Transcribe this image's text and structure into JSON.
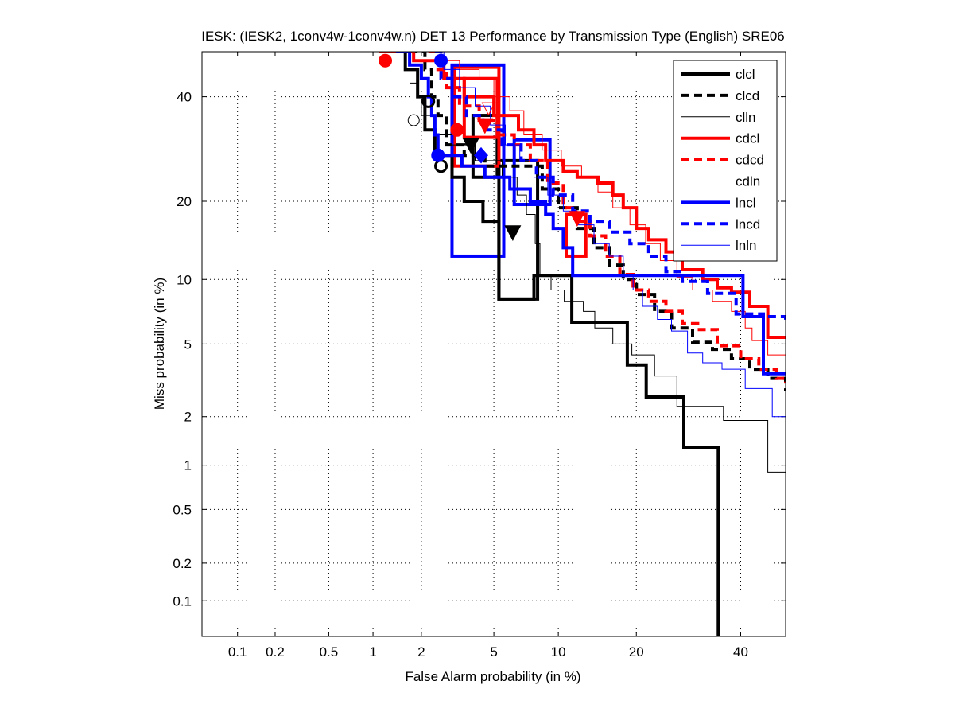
{
  "chart_data": {
    "type": "line",
    "title": "IESK: (IESK2, 1conv4w-1conv4w.n) DET 13 Performance by Transmission Type (English) SRE06",
    "xlabel": "False Alarm probability (in %)",
    "ylabel": "Miss probability (in %)",
    "xscale": "normal-deviate",
    "yscale": "normal-deviate",
    "xlim": [
      0.05,
      50
    ],
    "ylim": [
      0.05,
      50
    ],
    "grid": true,
    "xticks": [
      0.1,
      0.2,
      0.5,
      1,
      2,
      5,
      10,
      20,
      40
    ],
    "xtick_labels": [
      "0.1",
      "0.2",
      "0.5",
      "1",
      "2",
      "5",
      "10",
      "20",
      "40"
    ],
    "yticks": [
      0.1,
      0.2,
      0.5,
      1,
      2,
      5,
      10,
      20,
      40
    ],
    "ytick_labels": [
      "0.1",
      "0.2",
      "0.5",
      "1",
      "2",
      "5",
      "10",
      "20",
      "40"
    ],
    "legend_position": "top-right",
    "series": [
      {
        "name": "clcl",
        "color": "#000000",
        "style": "solid",
        "weight": "thick",
        "points": [
          [
            1.6,
            50
          ],
          [
            1.6,
            46
          ],
          [
            1.9,
            46
          ],
          [
            1.9,
            40
          ],
          [
            2.1,
            40
          ],
          [
            2.1,
            33
          ],
          [
            2.4,
            33
          ],
          [
            2.4,
            28
          ],
          [
            3.0,
            28
          ],
          [
            3.0,
            24
          ],
          [
            3.5,
            24
          ],
          [
            3.5,
            20
          ],
          [
            4.4,
            20
          ],
          [
            4.4,
            17
          ],
          [
            5.3,
            17
          ],
          [
            5.3,
            8.2
          ],
          [
            7.8,
            8.2
          ],
          [
            7.8,
            10.4
          ],
          [
            11.4,
            10.4
          ],
          [
            11.4,
            6.4
          ],
          [
            18.6,
            6.4
          ],
          [
            18.6,
            3.9
          ],
          [
            21.6,
            3.9
          ],
          [
            21.6,
            2.6
          ],
          [
            28.3,
            2.6
          ],
          [
            28.3,
            1.3
          ],
          [
            35.2,
            1.3
          ],
          [
            35.2,
            0.05
          ]
        ]
      },
      {
        "name": "clcd",
        "color": "#000000",
        "style": "dashed",
        "weight": "thick",
        "points": [
          [
            1.7,
            50
          ],
          [
            2.1,
            46
          ],
          [
            2.3,
            40
          ],
          [
            2.5,
            36
          ],
          [
            2.8,
            30
          ],
          [
            3.5,
            28
          ],
          [
            4.5,
            26
          ],
          [
            6.0,
            26
          ],
          [
            7.6,
            26
          ],
          [
            8.5,
            22
          ],
          [
            10,
            19
          ],
          [
            12,
            16
          ],
          [
            14,
            13.5
          ],
          [
            16,
            11.5
          ],
          [
            18,
            10
          ],
          [
            20,
            8.6
          ],
          [
            23,
            7.2
          ],
          [
            26,
            6.0
          ],
          [
            30,
            5.1
          ],
          [
            34,
            4.7
          ],
          [
            38,
            4.2
          ],
          [
            42,
            3.7
          ],
          [
            46,
            3.3
          ],
          [
            50,
            2.8
          ]
        ]
      },
      {
        "name": "clln",
        "color": "#000000",
        "style": "solid",
        "weight": "thin",
        "points": [
          [
            1.7,
            43
          ],
          [
            1.9,
            40
          ],
          [
            2.0,
            36
          ],
          [
            2.4,
            32
          ],
          [
            3.0,
            30
          ],
          [
            4.0,
            27
          ],
          [
            5.5,
            24
          ],
          [
            6.5,
            21
          ],
          [
            7.2,
            18
          ],
          [
            7.9,
            14
          ],
          [
            8.3,
            10.5
          ],
          [
            9.3,
            9.0
          ],
          [
            10.6,
            8.0
          ],
          [
            12.7,
            7.2
          ],
          [
            14.1,
            6.0
          ],
          [
            16.5,
            5.0
          ],
          [
            19.3,
            4.4
          ],
          [
            23.0,
            3.4
          ],
          [
            27.0,
            2.9
          ],
          [
            27.0,
            2.3
          ],
          [
            36.3,
            2.3
          ],
          [
            36.3,
            1.9
          ],
          [
            46.0,
            1.9
          ],
          [
            46.0,
            0.9
          ],
          [
            50,
            0.9
          ]
        ]
      },
      {
        "name": "cdcl",
        "color": "#ff0000",
        "style": "solid",
        "weight": "thick",
        "points": [
          [
            1.1,
            50
          ],
          [
            1.8,
            48
          ],
          [
            2.7,
            44
          ],
          [
            3.5,
            40
          ],
          [
            5.0,
            36
          ],
          [
            6.6,
            33
          ],
          [
            7.8,
            30
          ],
          [
            8.8,
            27
          ],
          [
            10.5,
            25
          ],
          [
            12,
            24
          ],
          [
            14.5,
            23
          ],
          [
            16.5,
            21
          ],
          [
            18,
            19
          ],
          [
            20,
            16
          ],
          [
            22,
            14.5
          ],
          [
            25,
            13
          ],
          [
            28,
            11
          ],
          [
            32,
            10
          ],
          [
            35,
            9.2
          ],
          [
            38,
            8.8
          ],
          [
            42,
            7.6
          ],
          [
            46,
            7.6
          ],
          [
            46,
            5.4
          ],
          [
            50,
            5.4
          ]
        ]
      },
      {
        "name": "cdcd",
        "color": "#ff0000",
        "style": "dashed",
        "weight": "thick",
        "points": [
          [
            2.2,
            50
          ],
          [
            2.5,
            46
          ],
          [
            2.8,
            42
          ],
          [
            3.3,
            38
          ],
          [
            4.2,
            35
          ],
          [
            5.2,
            32
          ],
          [
            6.3,
            30
          ],
          [
            7.5,
            27
          ],
          [
            9.0,
            23
          ],
          [
            10.5,
            19
          ],
          [
            11.8,
            17
          ],
          [
            13.5,
            15
          ],
          [
            15.5,
            12.5
          ],
          [
            17.5,
            10.5
          ],
          [
            19.5,
            9
          ],
          [
            22,
            8
          ],
          [
            25,
            7.2
          ],
          [
            28,
            6.3
          ],
          [
            31,
            5.9
          ],
          [
            35,
            4.9
          ],
          [
            40,
            4.2
          ],
          [
            44,
            3.7
          ],
          [
            48,
            3.3
          ],
          [
            50,
            3.1
          ]
        ]
      },
      {
        "name": "cdln",
        "color": "#ff0000",
        "style": "solid",
        "weight": "thin",
        "points": [
          [
            2.0,
            50
          ],
          [
            2.6,
            48
          ],
          [
            3.3,
            46
          ],
          [
            4.2,
            44
          ],
          [
            5.0,
            40
          ],
          [
            6.0,
            37
          ],
          [
            7.0,
            32
          ],
          [
            8.5,
            29
          ],
          [
            10.3,
            26
          ],
          [
            12.5,
            24
          ],
          [
            14.5,
            21.5
          ],
          [
            16.5,
            19
          ],
          [
            19,
            16.5
          ],
          [
            21.5,
            14
          ],
          [
            24,
            12
          ],
          [
            27,
            10.2
          ],
          [
            30,
            9.0
          ],
          [
            34,
            8.0
          ],
          [
            38,
            7.2
          ],
          [
            41,
            6.0
          ],
          [
            42.5,
            6.0
          ],
          [
            42.5,
            5.2
          ],
          [
            46,
            5.2
          ],
          [
            46,
            4.4
          ],
          [
            50,
            4.4
          ]
        ]
      },
      {
        "name": "lncl",
        "color": "#0000ff",
        "style": "solid",
        "weight": "thick",
        "points": [
          [
            1.4,
            50
          ],
          [
            1.7,
            47
          ],
          [
            2.0,
            44
          ],
          [
            2.2,
            40
          ],
          [
            2.3,
            36
          ],
          [
            2.4,
            32
          ],
          [
            2.5,
            28
          ],
          [
            3.0,
            28
          ],
          [
            3.4,
            26
          ],
          [
            4.5,
            24
          ],
          [
            6.0,
            22
          ],
          [
            7.5,
            20
          ],
          [
            8.8,
            18
          ],
          [
            9.5,
            16
          ],
          [
            10.5,
            13.5
          ],
          [
            11.5,
            12.5
          ],
          [
            11.5,
            10.4
          ],
          [
            40.5,
            10.4
          ],
          [
            40.5,
            6.8
          ],
          [
            45,
            6.8
          ],
          [
            45,
            3.5
          ],
          [
            50,
            3.5
          ]
        ]
      },
      {
        "name": "lncd",
        "color": "#0000ff",
        "style": "dashed",
        "weight": "thick",
        "points": [
          [
            2.4,
            50
          ],
          [
            2.6,
            44
          ],
          [
            3.0,
            40
          ],
          [
            3.6,
            36
          ],
          [
            4.4,
            33
          ],
          [
            5.5,
            30
          ],
          [
            6.8,
            27
          ],
          [
            8.0,
            24
          ],
          [
            9.5,
            21
          ],
          [
            11.5,
            18.5
          ],
          [
            13.5,
            17
          ],
          [
            16,
            15.5
          ],
          [
            19,
            14
          ],
          [
            22,
            12.5
          ],
          [
            25,
            10.8
          ],
          [
            28,
            9.8
          ],
          [
            33,
            8.7
          ],
          [
            38,
            8.7
          ],
          [
            39,
            7.0
          ],
          [
            45,
            6.8
          ],
          [
            50,
            6.5
          ]
        ]
      },
      {
        "name": "lnln",
        "color": "#0000ff",
        "style": "solid",
        "weight": "thin",
        "points": [
          [
            2.1,
            50
          ],
          [
            2.7,
            46
          ],
          [
            3.3,
            42
          ],
          [
            4.0,
            38
          ],
          [
            4.8,
            34
          ],
          [
            5.7,
            30
          ],
          [
            6.7,
            27
          ],
          [
            7.8,
            24
          ],
          [
            9.0,
            21
          ],
          [
            10.5,
            18.5
          ],
          [
            12,
            16.5
          ],
          [
            14,
            14
          ],
          [
            16,
            12.5
          ],
          [
            18,
            10.5
          ],
          [
            19.5,
            9
          ],
          [
            21,
            7.6
          ],
          [
            23.5,
            6.6
          ],
          [
            26,
            5.8
          ],
          [
            29,
            4.5
          ],
          [
            32,
            4.0
          ],
          [
            36,
            3.7
          ],
          [
            41,
            2.9
          ],
          [
            47,
            2.9
          ],
          [
            47,
            2.0
          ],
          [
            50,
            2.0
          ]
        ]
      }
    ],
    "markers": [
      {
        "series": "clcl",
        "shape": "triangle",
        "filled": true,
        "x": 6.2,
        "y": 15.5
      },
      {
        "series": "clcl",
        "shape": "circle",
        "filled": false,
        "x": 2.6,
        "y": 26
      },
      {
        "series": "clcd",
        "shape": "triangle",
        "filled": true,
        "x": 3.8,
        "y": 30
      },
      {
        "series": "clcd",
        "shape": "circle",
        "filled": false,
        "x": 2.2,
        "y": 39
      },
      {
        "series": "clln",
        "shape": "circle",
        "filled": false,
        "x": 1.8,
        "y": 35
      },
      {
        "series": "cdcl",
        "shape": "circle",
        "filled": true,
        "x": 1.2,
        "y": 48
      },
      {
        "series": "cdcd",
        "shape": "circle",
        "filled": true,
        "x": 3.2,
        "y": 33
      },
      {
        "series": "cdcd",
        "shape": "triangle",
        "filled": true,
        "x": 4.5,
        "y": 34
      },
      {
        "series": "cdcl",
        "shape": "triangle",
        "filled": true,
        "x": 12,
        "y": 17.5
      },
      {
        "series": "cdln",
        "shape": "triangle",
        "filled": false,
        "x": 4.7,
        "y": 37.5
      },
      {
        "series": "lncl",
        "shape": "circle",
        "filled": true,
        "x": 2.5,
        "y": 28
      },
      {
        "series": "lncl",
        "shape": "diamond",
        "filled": true,
        "x": 4.3,
        "y": 28
      },
      {
        "series": "lncd",
        "shape": "circle",
        "filled": true,
        "x": 2.6,
        "y": 48
      }
    ],
    "confidence_boxes": [
      {
        "series": "clcl",
        "x0": 5.3,
        "x1": 8.1,
        "y0": 8.2,
        "y1": 27
      },
      {
        "series": "clcd",
        "x0": 3.9,
        "x1": 5.2,
        "y0": 24,
        "y1": 36
      },
      {
        "series": "cdcl",
        "x0": 3.1,
        "x1": 5.3,
        "y0": 26,
        "y1": 46.5
      },
      {
        "series": "cdcl",
        "x0": 3.5,
        "x1": 5.2,
        "y0": 31.5,
        "y1": 44
      },
      {
        "series": "cdcd",
        "x0": 10.8,
        "x1": 13.0,
        "y0": 12.5,
        "y1": 18
      },
      {
        "series": "lncl",
        "x0": 3.0,
        "x1": 5.6,
        "y0": 12.5,
        "y1": 47
      },
      {
        "series": "lncl",
        "x0": 6.3,
        "x1": 9.2,
        "y0": 19.5,
        "y1": 31
      }
    ]
  }
}
